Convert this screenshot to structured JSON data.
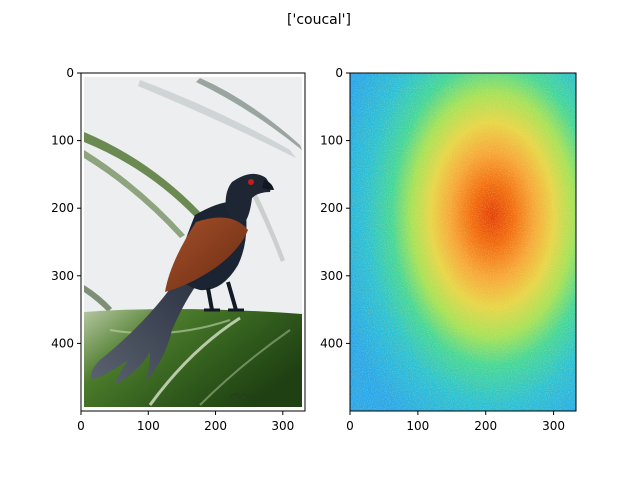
{
  "figure": {
    "title": "['coucal']"
  },
  "chart_data": [
    {
      "type": "image",
      "name": "input-photo",
      "content": "coucal bird perched on a green banana leaf against a pale sky",
      "xlim": [
        0,
        333
      ],
      "ylim": [
        500,
        0
      ],
      "xticks": [
        0,
        100,
        200,
        300
      ],
      "yticks": [
        0,
        100,
        200,
        300,
        400
      ],
      "xtick_labels": [
        "0",
        "100",
        "200",
        "300"
      ],
      "ytick_labels": [
        "0",
        "100",
        "200",
        "300",
        "400"
      ],
      "grid": false
    },
    {
      "type": "heatmap",
      "name": "saliency-map",
      "colormap": "turbo",
      "xlim": [
        0,
        333
      ],
      "ylim": [
        500,
        0
      ],
      "hotspot_center": [
        210,
        210
      ],
      "xticks": [
        0,
        100,
        200,
        300
      ],
      "yticks": [
        0,
        100,
        200,
        300,
        400
      ],
      "xtick_labels": [
        "0",
        "100",
        "200",
        "300"
      ],
      "ytick_labels": [
        "0",
        "100",
        "200",
        "300",
        "400"
      ],
      "grid": false
    }
  ],
  "colors": {
    "sky": "#eceef0",
    "leaf_dark": "#2f5a1c",
    "leaf_light": "#b7c8a2",
    "bird_body": "#1b2433",
    "bird_wing": "#8a3d1c",
    "eye": "#c21d1d",
    "heat_hot": "#e04a06",
    "heat_cool": "#2ab0ea"
  }
}
